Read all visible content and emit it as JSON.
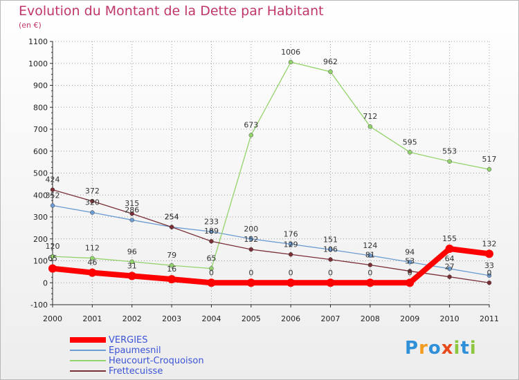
{
  "header": {
    "title": "Evolution du Montant de la Dette par Habitant",
    "unit": "(en €)"
  },
  "colors": {
    "title": "#c0366b",
    "legend_text": "#3b53d6",
    "axis": "#2b2b2b",
    "grid": "#9a9a9a"
  },
  "logo": {
    "letters": [
      "P",
      "r",
      "o",
      "x",
      "i",
      "t",
      "i"
    ],
    "colors": [
      "#2f8fd8",
      "#f29d1f",
      "#2f8fd8",
      "#e84a1c",
      "#8cc63f",
      "#2f8fd8",
      "#8cc63f"
    ]
  },
  "chart_data": {
    "type": "line",
    "title": "Evolution du Montant de la Dette par Habitant",
    "subtitle": "(en €)",
    "xlabel": "",
    "ylabel": "",
    "x": [
      "2000",
      "2001",
      "2002",
      "2003",
      "2004",
      "2005",
      "2006",
      "2007",
      "2008",
      "2009",
      "2010",
      "2011"
    ],
    "ylim": [
      -100,
      1100
    ],
    "yticks": [
      "-100",
      "0",
      "100",
      "200",
      "300",
      "400",
      "500",
      "600",
      "700",
      "800",
      "900",
      "1000",
      "1100"
    ],
    "grid": true,
    "legend_position": "bottom-left",
    "series": [
      {
        "name": "VERGIES",
        "color": "#ff0000",
        "emphasis": true,
        "values": [
          65,
          46,
          31,
          16,
          0,
          0,
          0,
          0,
          0,
          0,
          155,
          132
        ],
        "labels": [
          "65",
          "46",
          "31",
          "16",
          "0",
          "0",
          "0",
          "0",
          "0",
          "0",
          "155",
          "132"
        ]
      },
      {
        "name": "Epaumesnil",
        "color": "#6b9bd1",
        "emphasis": false,
        "values": [
          352,
          320,
          286,
          254,
          233,
          200,
          176,
          151,
          124,
          94,
          64,
          33
        ],
        "labels": [
          "352",
          "320",
          "286",
          "254",
          "233",
          "200",
          "176",
          "151",
          "124",
          "94",
          "64",
          "33"
        ]
      },
      {
        "name": "Heucourt-Croquoison",
        "color": "#93d36b",
        "emphasis": false,
        "values": [
          120,
          112,
          96,
          79,
          65,
          673,
          1006,
          962,
          712,
          595,
          553,
          517
        ],
        "labels": [
          "120",
          "112",
          "96",
          "79",
          "65",
          "673",
          "1006",
          "962",
          "712",
          "595",
          "553",
          "517"
        ]
      },
      {
        "name": "Frettecuisse",
        "color": "#7a2e36",
        "emphasis": false,
        "values": [
          424,
          372,
          315,
          254,
          189,
          152,
          129,
          106,
          81,
          53,
          27,
          0
        ],
        "labels": [
          "424",
          "372",
          "315",
          "254",
          "189",
          "152",
          "129",
          "106",
          "81",
          "53",
          "27",
          "0"
        ]
      }
    ]
  }
}
